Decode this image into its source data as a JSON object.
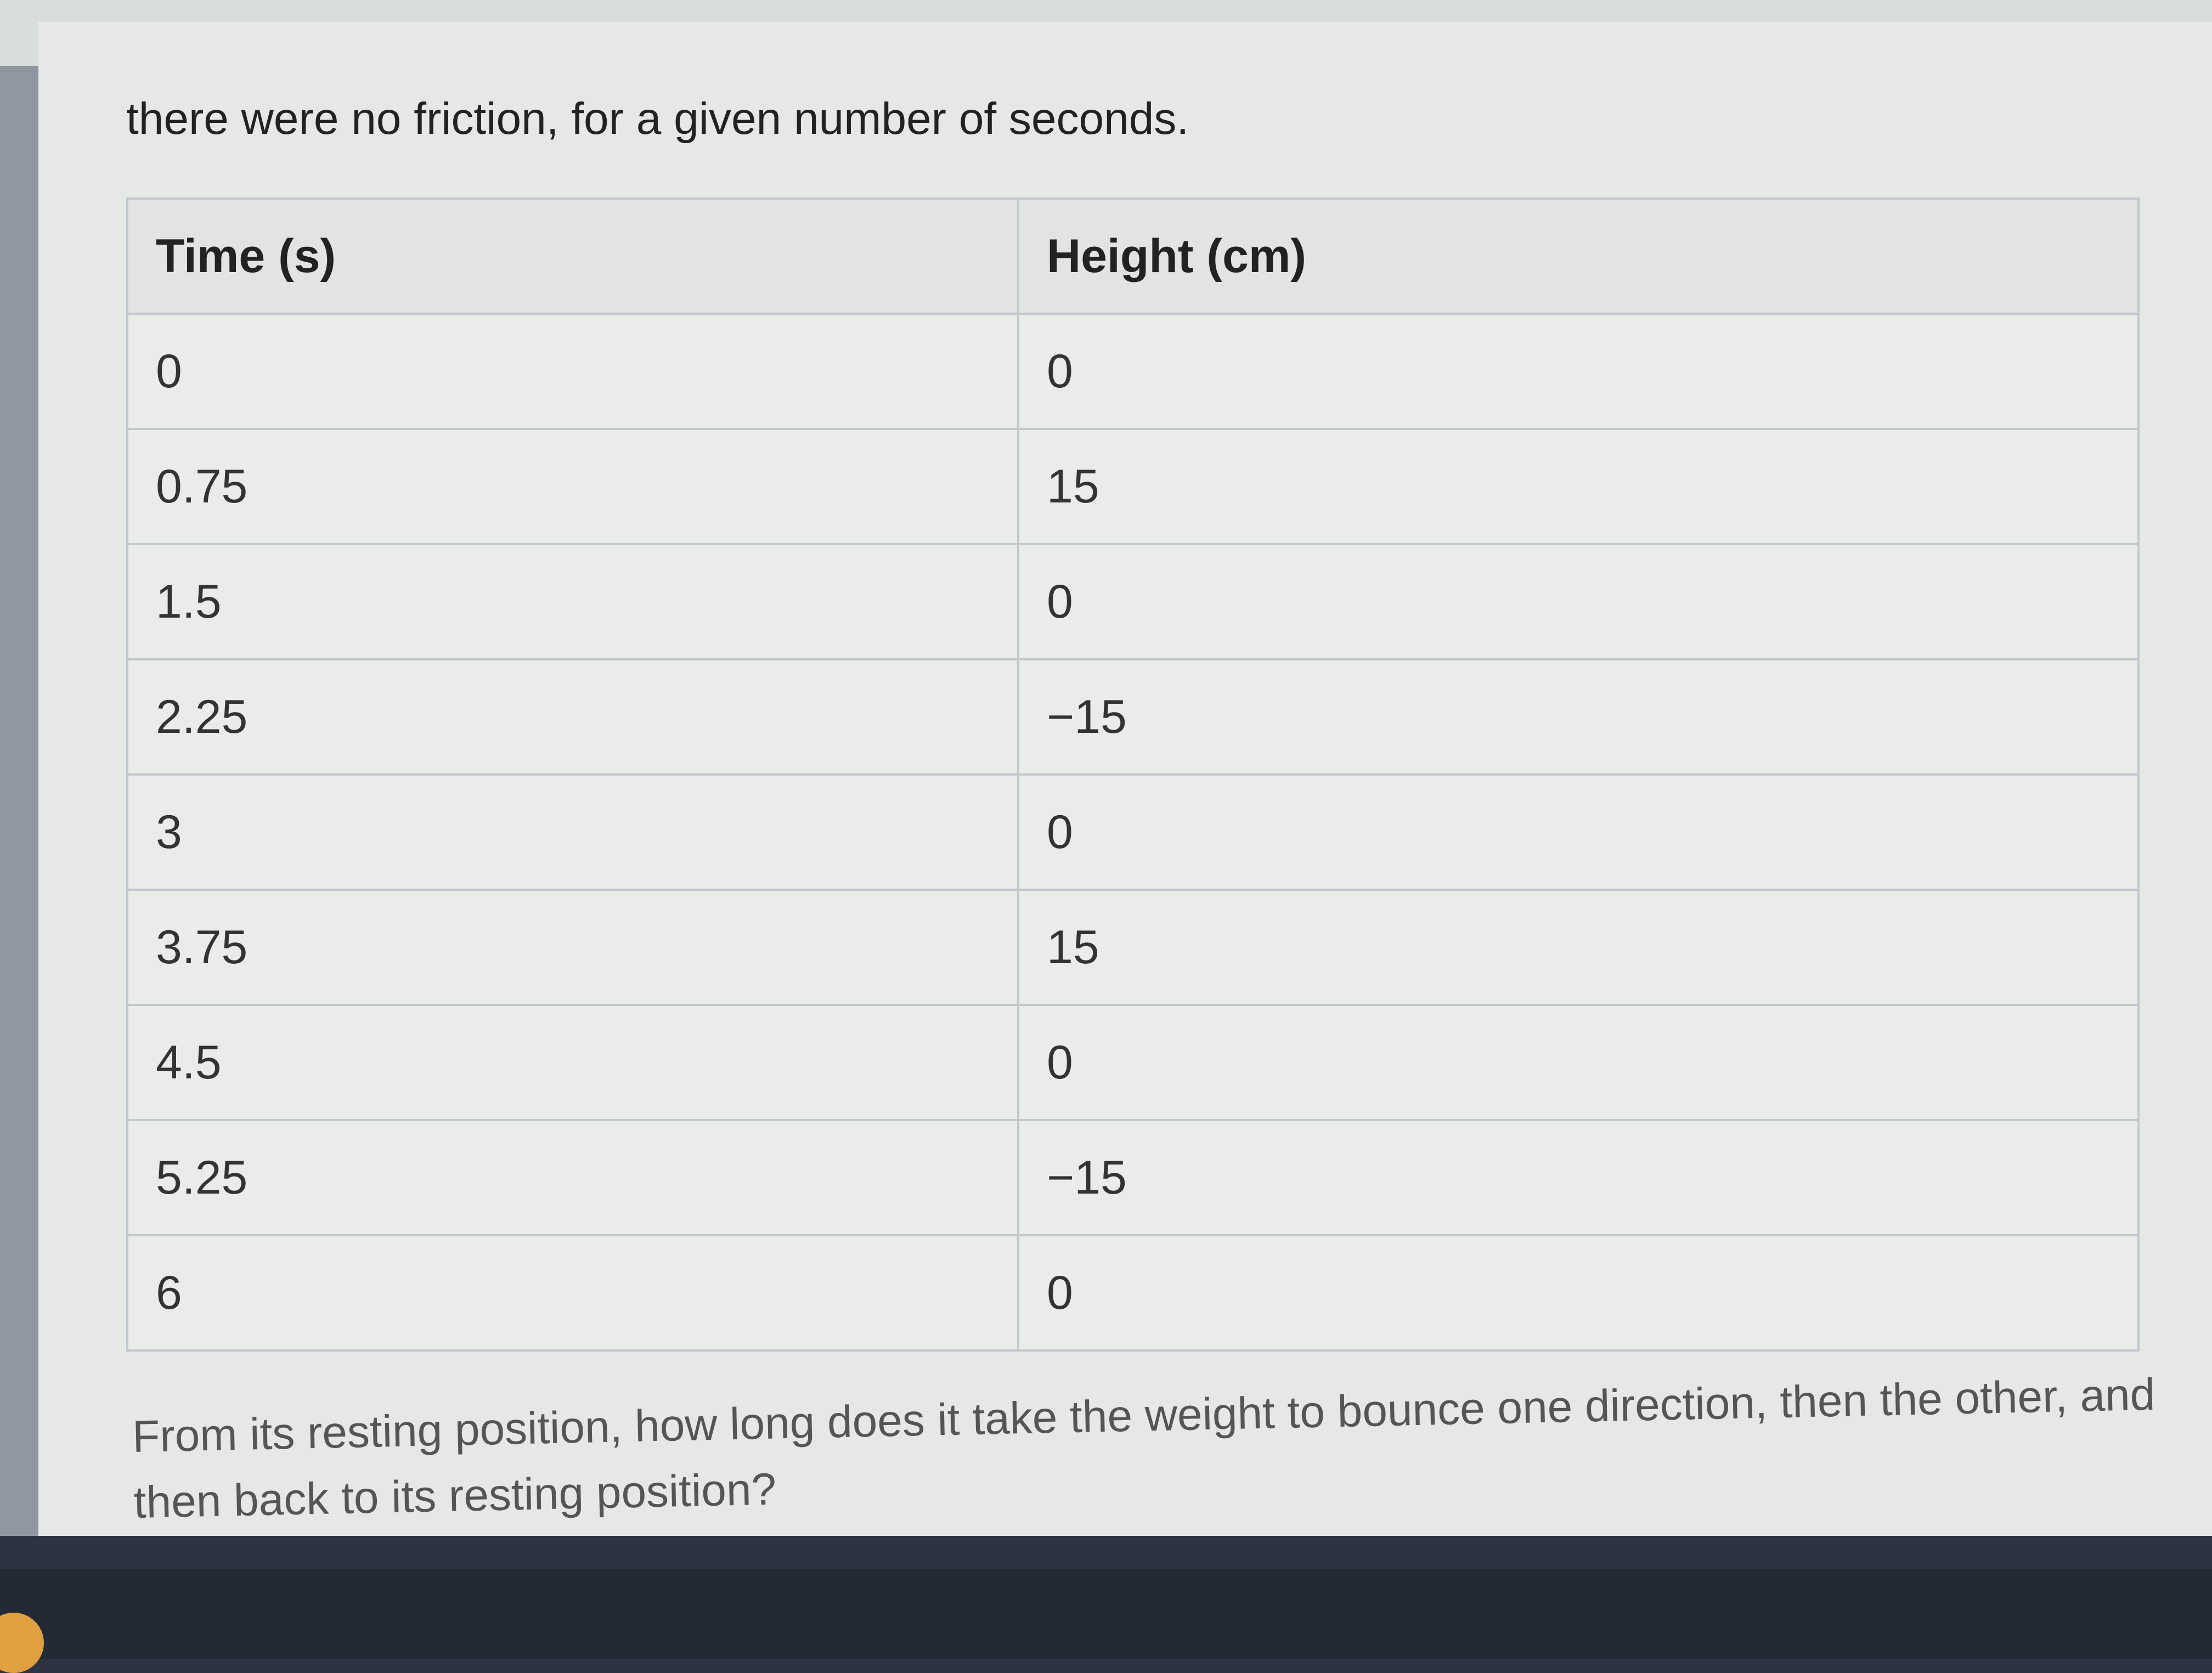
{
  "intro_text": "there were no friction, for a given number of seconds.",
  "table": {
    "headers": [
      "Time (s)",
      "Height (cm)"
    ],
    "rows": [
      [
        "0",
        "0"
      ],
      [
        "0.75",
        "15"
      ],
      [
        "1.5",
        "0"
      ],
      [
        "2.25",
        "−15"
      ],
      [
        "3",
        "0"
      ],
      [
        "3.75",
        "15"
      ],
      [
        "4.5",
        "0"
      ],
      [
        "5.25",
        "−15"
      ],
      [
        "6",
        "0"
      ]
    ]
  },
  "question": "From its resting position, how long does it take the weight to bounce one direction, then the other, and then back to its resting position?",
  "taskbar": {
    "icons": [
      "chrome-icon"
    ]
  }
}
